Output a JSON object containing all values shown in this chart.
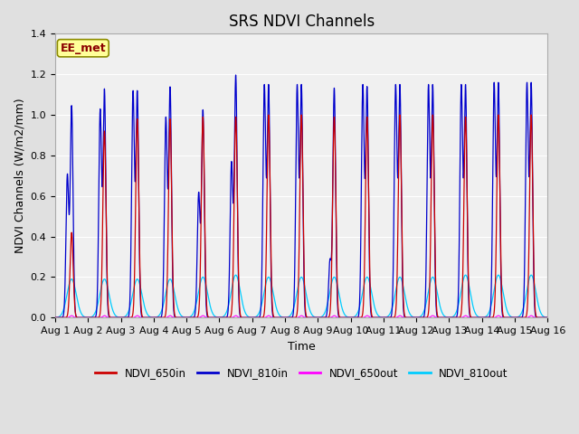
{
  "title": "SRS NDVI Channels",
  "xlabel": "Time",
  "ylabel": "NDVI Channels (W/m2/mm)",
  "ylim": [
    0,
    1.4
  ],
  "annotation_text": "EE_met",
  "annotation_bbox_facecolor": "#ffff99",
  "annotation_bbox_edgecolor": "#8B8B00",
  "colors": {
    "NDVI_650in": "#cc0000",
    "NDVI_810in": "#0000cc",
    "NDVI_650out": "#ff00ff",
    "NDVI_810out": "#00ccff"
  },
  "plot_bg_color": "#f0f0f0",
  "fig_bg_color": "#e0e0e0",
  "grid_color": "#ffffff",
  "num_days": 15,
  "peak_650in": [
    0.42,
    0.92,
    0.98,
    0.98,
    0.99,
    0.99,
    1.0,
    1.0,
    0.99,
    0.99,
    1.0,
    1.0,
    0.99,
    1.0,
    1.0
  ],
  "peak_810in_main": [
    1.04,
    1.12,
    1.11,
    1.13,
    1.02,
    1.19,
    1.14,
    1.14,
    1.13,
    1.13,
    1.14,
    1.14,
    1.14,
    1.15,
    1.15
  ],
  "peak_810in_pre": [
    0.7,
    1.02,
    1.11,
    0.98,
    0.61,
    0.76,
    1.14,
    1.14,
    0.28,
    1.14,
    1.14,
    1.14,
    1.14,
    1.15,
    1.15
  ],
  "peak_810out": [
    0.19,
    0.19,
    0.19,
    0.19,
    0.2,
    0.21,
    0.2,
    0.2,
    0.2,
    0.2,
    0.2,
    0.2,
    0.21,
    0.21,
    0.21
  ],
  "title_fontsize": 12,
  "label_fontsize": 9,
  "tick_fontsize": 8
}
